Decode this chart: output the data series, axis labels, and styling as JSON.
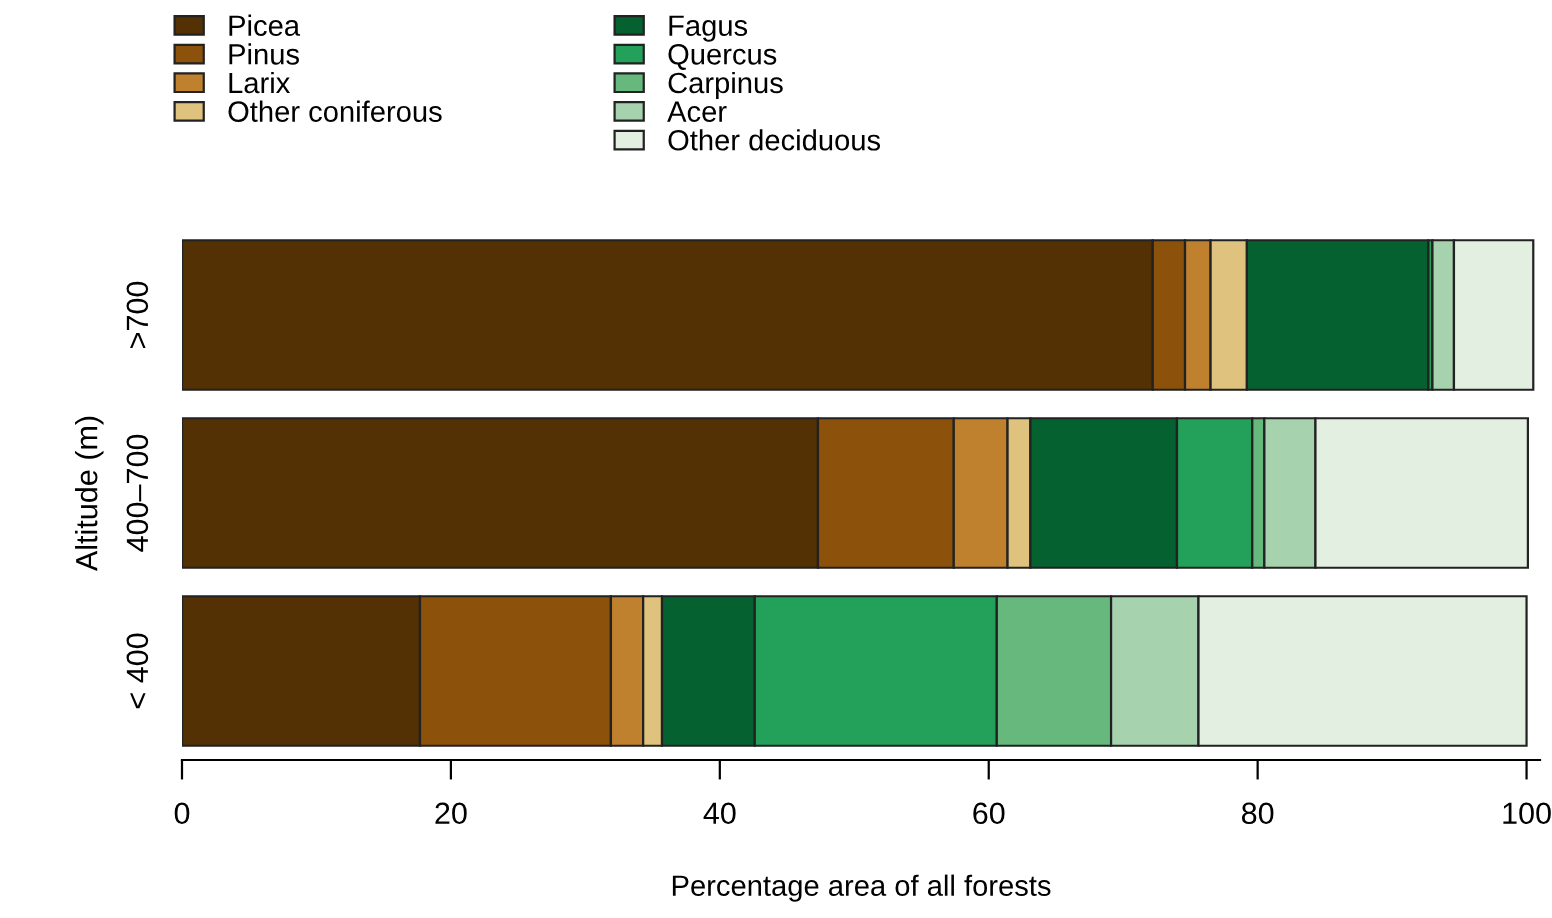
{
  "chart_data": {
    "type": "bar",
    "orientation": "horizontal",
    "stacked": true,
    "xlabel": "Percentage area of all forests",
    "ylabel": "Altitude (m)",
    "categories": [
      ">700",
      "400–700",
      "< 400"
    ],
    "series": [
      {
        "name": "Picea",
        "color": "#543005",
        "values": [
          72.2,
          47.3,
          17.7
        ]
      },
      {
        "name": "Pinus",
        "color": "#8c510a",
        "values": [
          2.4,
          10.1,
          14.2
        ]
      },
      {
        "name": "Larix",
        "color": "#bf812d",
        "values": [
          1.9,
          4.0,
          2.4
        ]
      },
      {
        "name": "Other coniferous",
        "color": "#dfc27d",
        "values": [
          2.7,
          1.7,
          1.4
        ]
      },
      {
        "name": "Fagus",
        "color": "#066130",
        "values": [
          13.5,
          10.9,
          6.9
        ]
      },
      {
        "name": "Quercus",
        "color": "#23a05a",
        "values": [
          0.3,
          5.6,
          18.0
        ]
      },
      {
        "name": "Carpinus",
        "color": "#66b87d",
        "values": [
          null,
          0.9,
          8.5
        ]
      },
      {
        "name": "Acer",
        "color": "#a6d3ae",
        "values": [
          1.6,
          3.8,
          6.5
        ]
      },
      {
        "name": "Other deciduous",
        "color": "#e3efe1",
        "values": [
          5.9,
          15.8,
          24.4
        ]
      }
    ],
    "xlim": [
      0,
      101
    ],
    "xticks": [
      0,
      20,
      40,
      60,
      80,
      100
    ],
    "grid": false,
    "legend": "top"
  }
}
